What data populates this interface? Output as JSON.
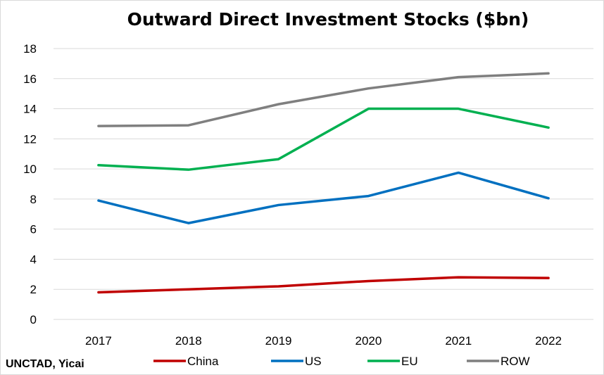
{
  "chart_data": {
    "type": "line",
    "title": "Outward Direct Investment Stocks ($bn)",
    "categories": [
      "2017",
      "2018",
      "2019",
      "2020",
      "2021",
      "2022"
    ],
    "ylim": [
      0,
      18
    ],
    "yticks": [
      "0",
      "2",
      "4",
      "6",
      "8",
      "10",
      "12",
      "14",
      "16",
      "18"
    ],
    "grid": true,
    "legend_position": "bottom",
    "series": [
      {
        "name": "China",
        "color": "#c00000",
        "values": [
          1.8,
          2.0,
          2.2,
          2.55,
          2.8,
          2.75
        ]
      },
      {
        "name": "US",
        "color": "#0070c0",
        "values": [
          7.9,
          6.4,
          7.6,
          8.2,
          9.75,
          8.05
        ]
      },
      {
        "name": "EU",
        "color": "#00b050",
        "values": [
          10.25,
          9.95,
          10.65,
          14.0,
          14.0,
          12.75
        ]
      },
      {
        "name": "ROW",
        "color": "#7f7f7f",
        "values": [
          12.85,
          12.9,
          14.3,
          15.35,
          16.1,
          16.35
        ]
      }
    ],
    "source": "UNCTAD, Yicai"
  }
}
